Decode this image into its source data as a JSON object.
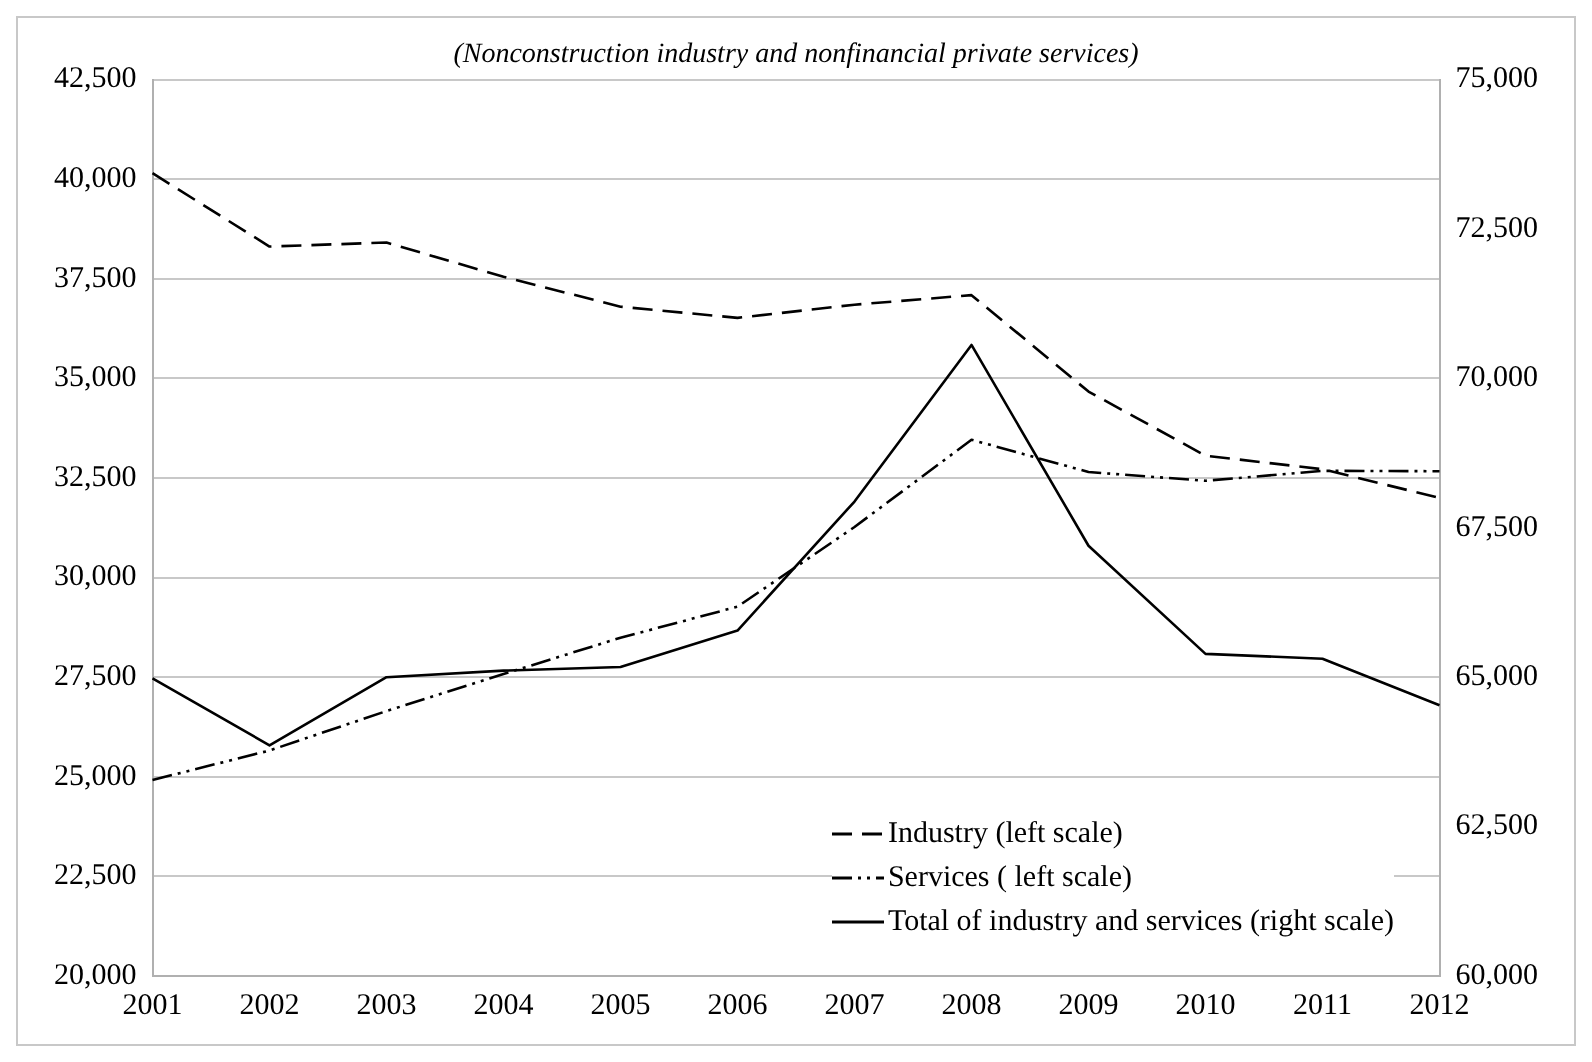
{
  "chart_data": {
    "type": "line",
    "title": "(Nonconstruction industry and nonfinancial private services)",
    "categories": [
      "2001",
      "2002",
      "2003",
      "2004",
      "2005",
      "2006",
      "2007",
      "2008",
      "2009",
      "2010",
      "2011",
      "2012"
    ],
    "series": [
      {
        "name": "Industry (left scale)",
        "color": "#000000",
        "line_style": "dashed",
        "values": [
          40150,
          38310,
          38410,
          37550,
          36800,
          36520,
          36850,
          37090,
          34670,
          33060,
          32720,
          32000
        ]
      },
      {
        "name": "Services ( left scale)",
        "color": "#000000",
        "line_style": "dotted",
        "values": [
          24920,
          25660,
          26650,
          27580,
          28490,
          29270,
          31270,
          33460,
          32650,
          32430,
          32680,
          32670
        ]
      },
      {
        "name": "Total of industry and services (right scale)",
        "color": "#000000",
        "line_style": "solid",
        "axis": "y2",
        "values": [
          64980,
          63860,
          65000,
          65110,
          65170,
          65780,
          67940,
          70560,
          67200,
          65390,
          65310,
          64530
        ]
      }
    ],
    "ylim": [
      20000,
      42500
    ],
    "yticks": [
      {
        "value": 20000,
        "label": "20,000"
      },
      {
        "value": 22500,
        "label": "22,500"
      },
      {
        "value": 25000,
        "label": "25,000"
      },
      {
        "value": 27500,
        "label": "27,500"
      },
      {
        "value": 30000,
        "label": "30,000"
      },
      {
        "value": 32500,
        "label": "32,500"
      },
      {
        "value": 35000,
        "label": "35,000"
      },
      {
        "value": 37500,
        "label": "37,500"
      },
      {
        "value": 40000,
        "label": "40,000"
      },
      {
        "value": 42500,
        "label": "42,500"
      }
    ],
    "y2lim": [
      60000,
      75000
    ],
    "y2ticks": [
      {
        "value": 60000,
        "label": "60,000"
      },
      {
        "value": 62500,
        "label": "62,500"
      },
      {
        "value": 65000,
        "label": "65,000"
      },
      {
        "value": 67500,
        "label": "67,500"
      },
      {
        "value": 70000,
        "label": "70,000"
      },
      {
        "value": 72500,
        "label": "72,500"
      },
      {
        "value": 75000,
        "label": "75,000"
      }
    ],
    "grid": "y",
    "legend": "bottom right",
    "marker": "none"
  }
}
